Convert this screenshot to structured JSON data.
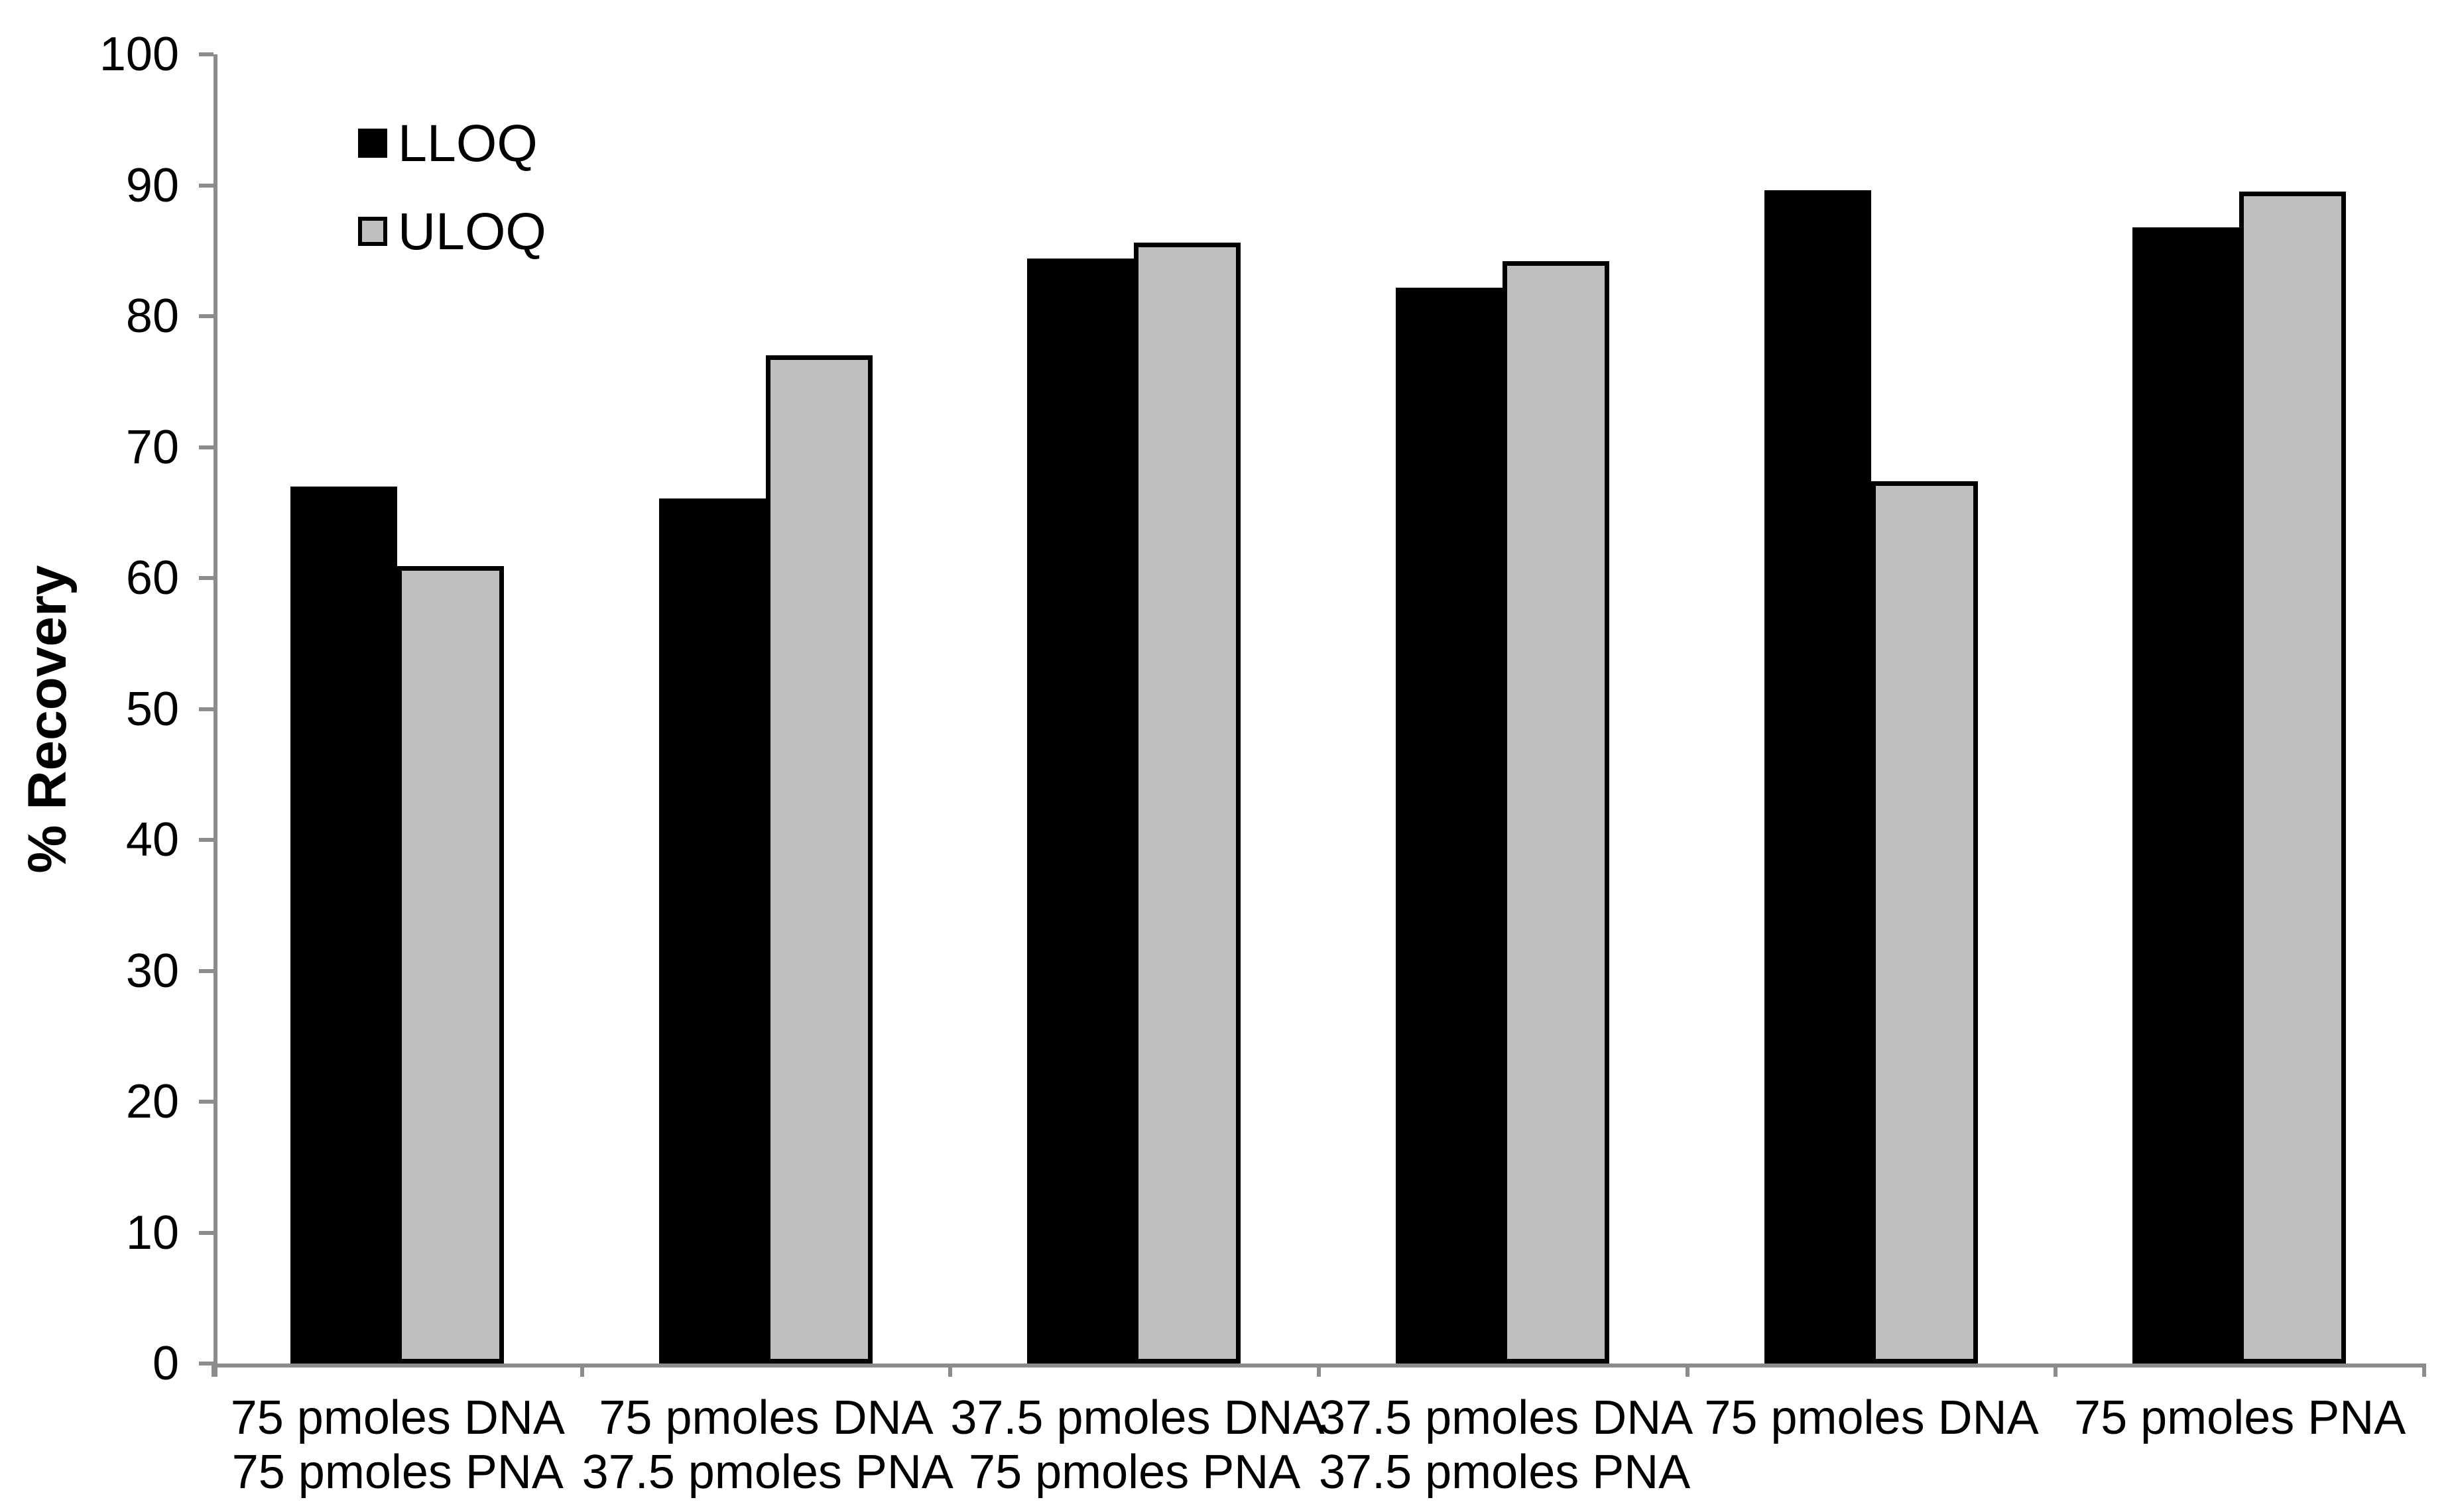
{
  "chart_data": {
    "type": "bar",
    "title": "",
    "xlabel": "",
    "ylabel": "% Recovery",
    "ylim": [
      0,
      100
    ],
    "yticks": [
      0,
      10,
      20,
      30,
      40,
      50,
      60,
      70,
      80,
      90,
      100
    ],
    "grid": false,
    "legend_position": "top-left-inside",
    "axis_color": "#8c8c8c",
    "bar_outline_color": "#000000",
    "categories": [
      [
        "75 pmoles DNA",
        "75 pmoles PNA"
      ],
      [
        "75 pmoles DNA",
        "37.5 pmoles PNA"
      ],
      [
        "37.5 pmoles DNA",
        "75 pmoles PNA"
      ],
      [
        "37.5 pmoles DNA",
        "37.5 pmoles PNA"
      ],
      [
        "75 pmoles DNA"
      ],
      [
        "75 pmoles PNA"
      ]
    ],
    "series": [
      {
        "name": "LLOQ",
        "color": "#000000",
        "values": [
          67.0,
          66.1,
          84.4,
          82.2,
          89.6,
          86.8
        ]
      },
      {
        "name": "ULOQ",
        "color": "#bfbfbf",
        "values": [
          60.9,
          77.0,
          85.6,
          84.2,
          67.4,
          89.5
        ]
      }
    ]
  }
}
